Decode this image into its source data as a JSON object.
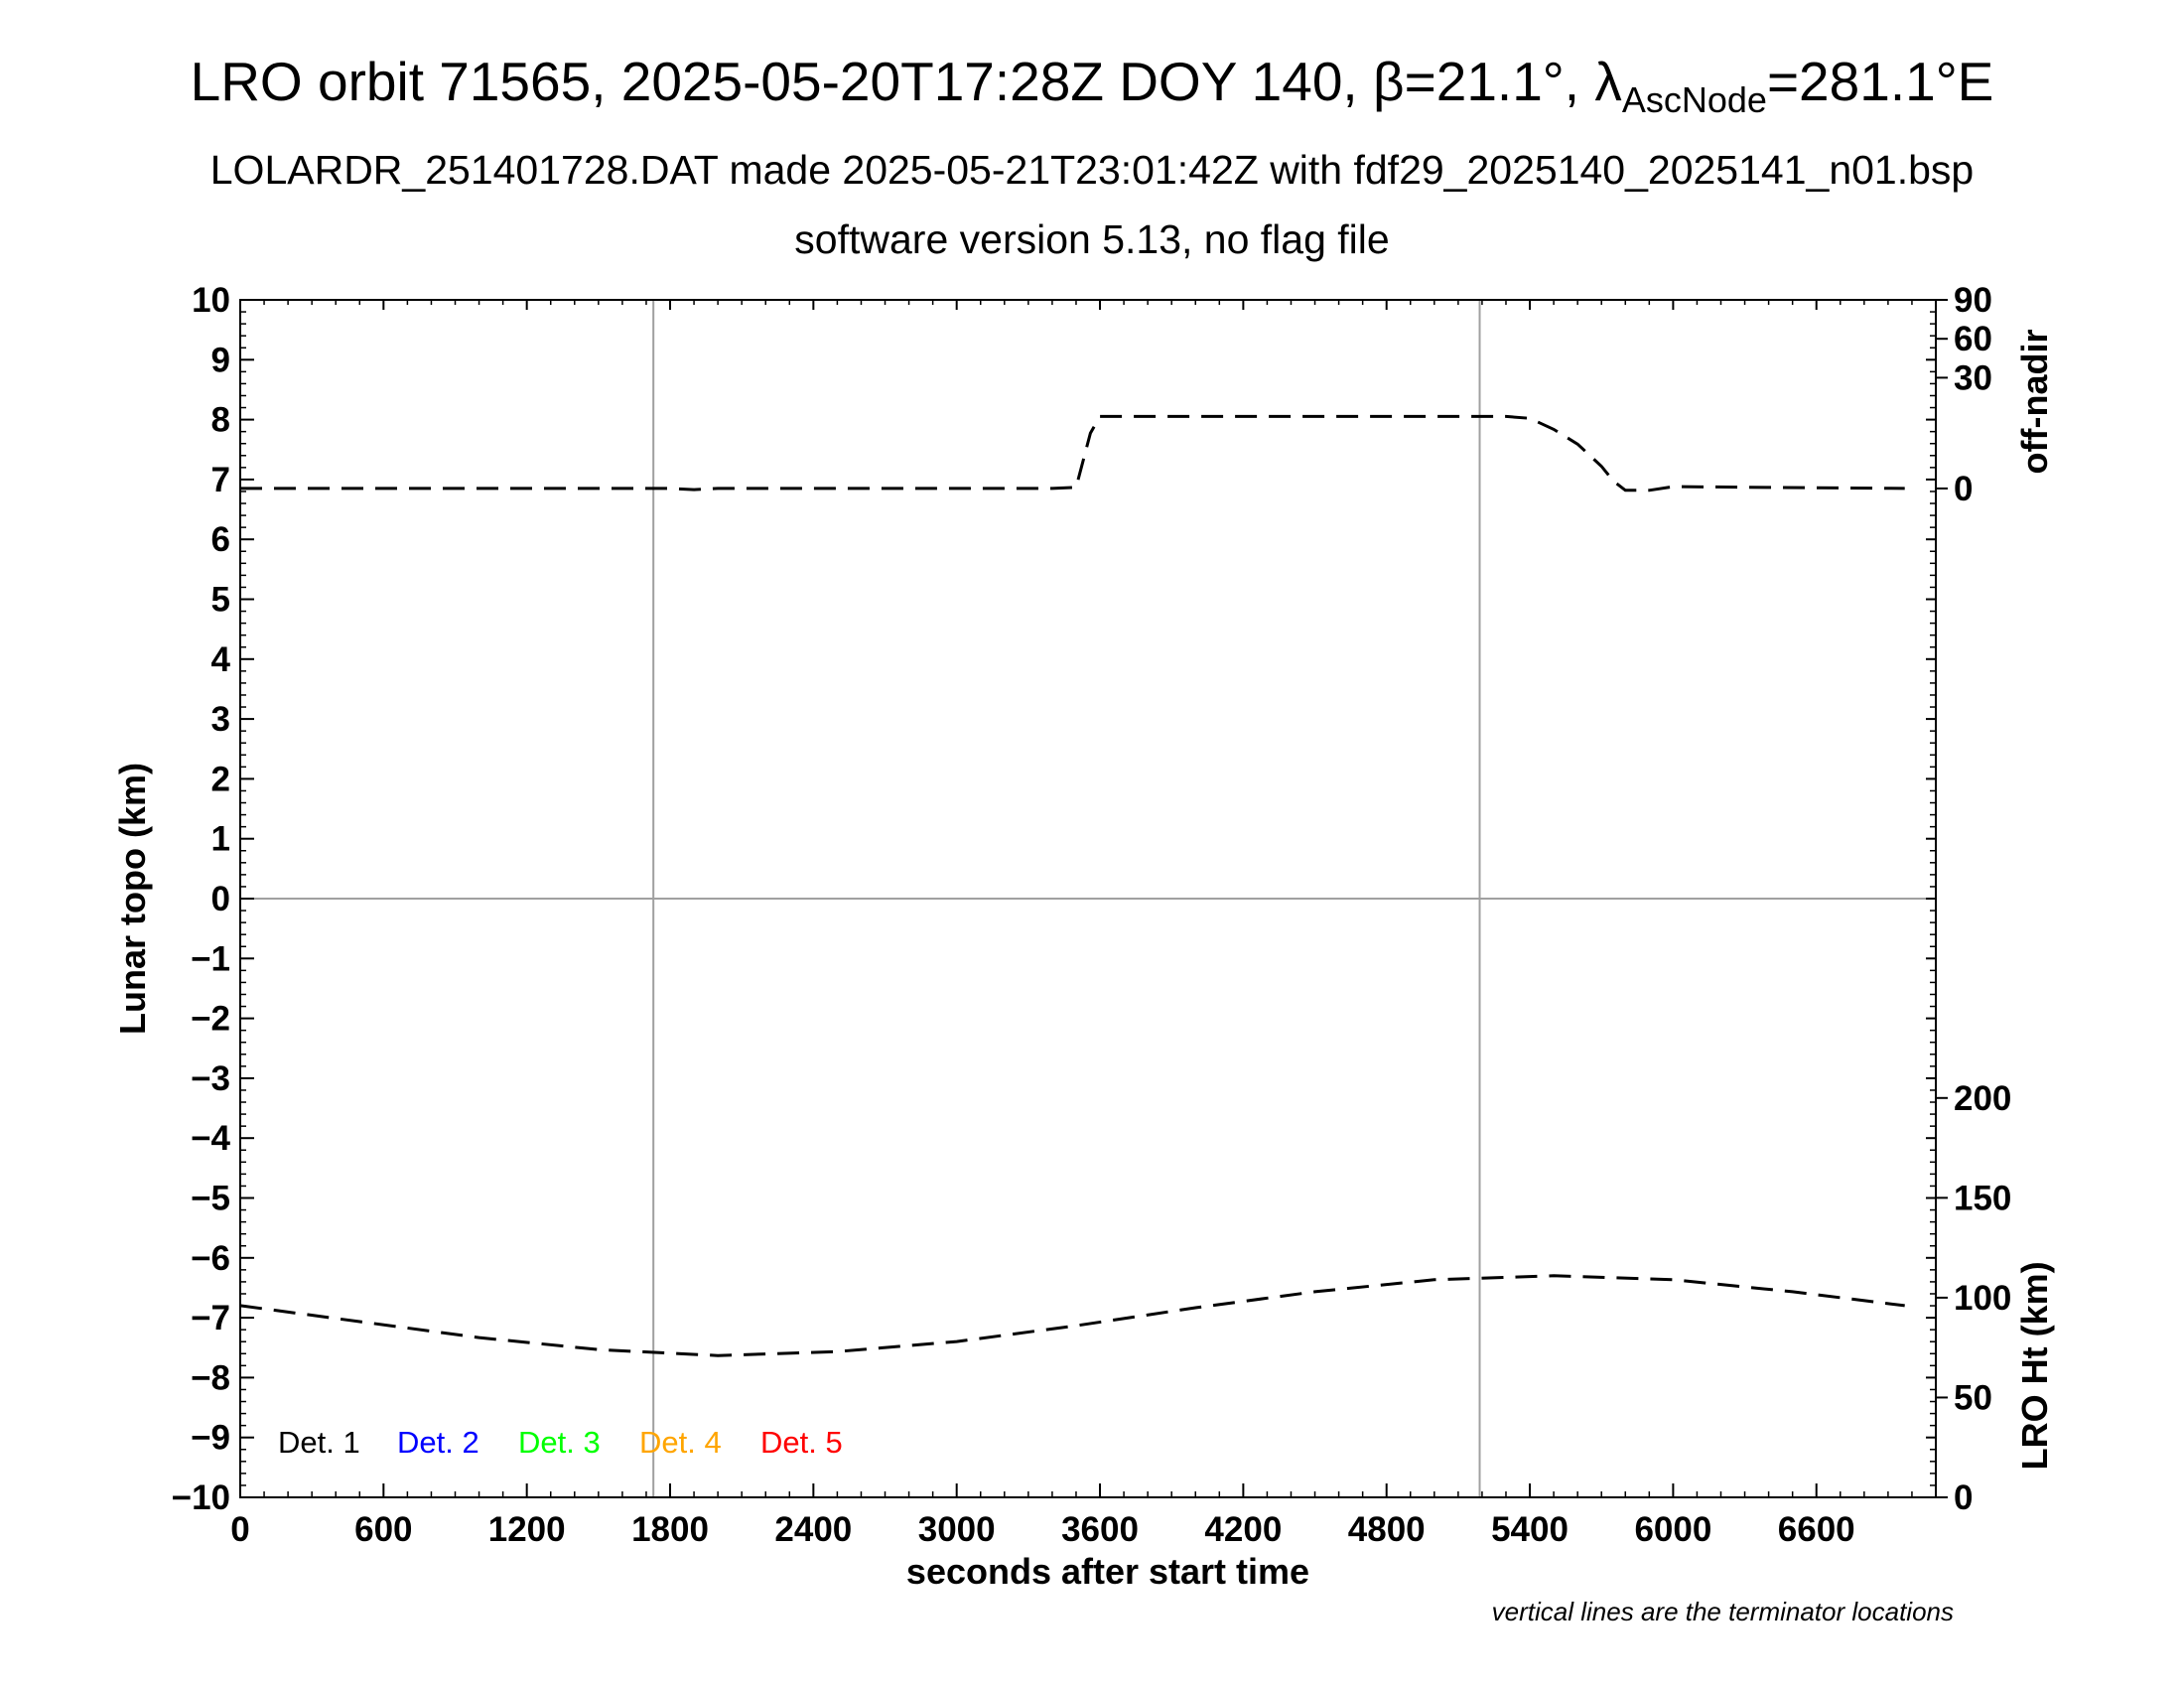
{
  "header": {
    "title_main": "LRO orbit 71565, 2025-05-20T17:28Z DOY 140, β=21.1°, λ",
    "title_sub": "AscNode",
    "title_end": "=281.1°E",
    "subtitle": "LOLARDR_251401728.DAT made 2025-05-21T23:01:42Z with fdf29_2025140_2025141_n01.bsp",
    "subtitle2": "software version 5.13, no flag file"
  },
  "chart_data": {
    "type": "line",
    "xlabel": "seconds after start time",
    "ylabel": "Lunar topo (km)",
    "xlim": [
      0,
      7100
    ],
    "ylim": [
      -10,
      10
    ],
    "x_ticks": [
      0,
      600,
      1200,
      1800,
      2400,
      3000,
      3600,
      4200,
      4800,
      5400,
      6000,
      6600
    ],
    "y_ticks": [
      "10",
      "9",
      "8",
      "7",
      "6",
      "5",
      "4",
      "3",
      "2",
      "1",
      "0",
      "−1",
      "−2",
      "−3",
      "−4",
      "−5",
      "−6",
      "−7",
      "−8",
      "−9",
      "−10"
    ],
    "grid": false,
    "terminator_lines_x": [
      1730,
      5190
    ],
    "footnote": "vertical lines are the terminator locations",
    "right_axis_top": {
      "label": "off-nadir",
      "ticks": [
        "90",
        "60",
        "30",
        "0"
      ],
      "tick_values": [
        90,
        60,
        30,
        0
      ]
    },
    "right_axis_bottom": {
      "label": "LRO Ht (km)",
      "ticks": [
        "200",
        "150",
        "100",
        "50",
        "0"
      ],
      "tick_values": [
        200,
        150,
        100,
        50,
        0
      ],
      "range": [
        0,
        200
      ]
    },
    "legend": {
      "placement": "bottom-left",
      "entries": [
        {
          "label": "Det. 1",
          "color": "#000000"
        },
        {
          "label": "Det. 2",
          "color": "#0000ff"
        },
        {
          "label": "Det. 3",
          "color": "#00ff00"
        },
        {
          "label": "Det. 4",
          "color": "#ffa500"
        },
        {
          "label": "Det. 5",
          "color": "#ff0000"
        }
      ]
    },
    "series": [
      {
        "axis": "off-nadir",
        "style": "dashed",
        "color": "#000000",
        "x": [
          0,
          1800,
          1900,
          2000,
          3400,
          3500,
          3560,
          3600,
          5300,
          5400,
          5500,
          5600,
          5700,
          5750,
          5800,
          5900,
          6000,
          6970
        ],
        "y": [
          0,
          0,
          -0.3,
          0,
          0,
          0.3,
          15,
          19.5,
          19.5,
          19,
          16,
          12,
          6,
          2,
          -0.5,
          -0.5,
          0.5,
          0
        ]
      },
      {
        "axis": "LRO Ht (km)",
        "style": "dashed",
        "color": "#000000",
        "x": [
          0,
          500,
          1000,
          1500,
          2000,
          2500,
          3000,
          3500,
          4000,
          4500,
          5000,
          5500,
          6000,
          6500,
          6970
        ],
        "y": [
          96,
          88,
          80,
          74,
          71,
          73,
          78,
          86,
          95,
          103,
          109,
          111,
          109,
          103,
          96
        ]
      }
    ]
  }
}
